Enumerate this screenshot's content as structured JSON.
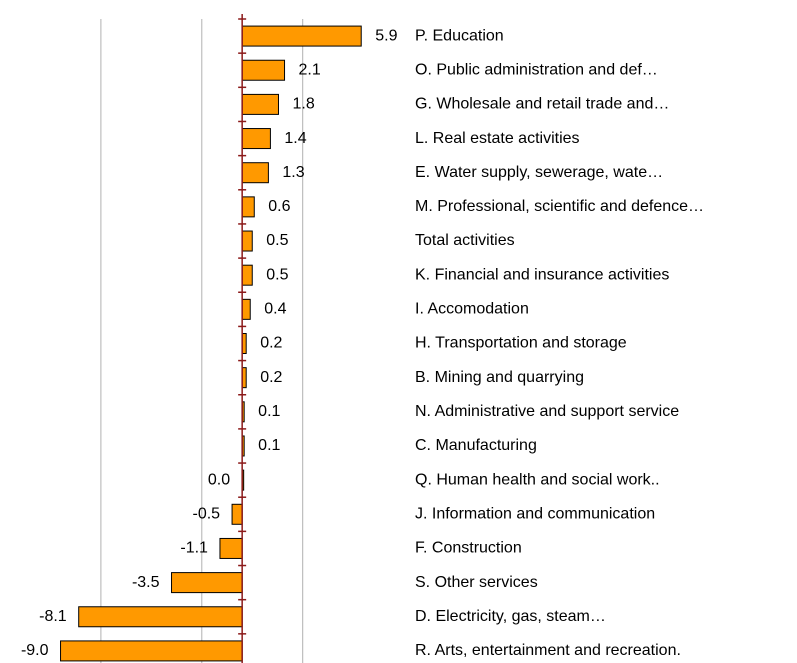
{
  "chart_data": {
    "type": "bar",
    "orientation": "horizontal",
    "categories": [
      "P. Education",
      "O. Public administration and def…",
      "G. Wholesale and retail trade and…",
      "L. Real estate activities",
      "E. Water supply, sewerage, wate…",
      "M. Professional, scientific and defence…",
      "Total activities",
      "K. Financial and insurance activities",
      "I. Accomodation",
      "H. Transportation and storage",
      "B. Mining and quarrying",
      "N. Administrative and support service",
      "C. Manufacturing",
      "Q. Human health and social work..",
      "J. Information and communication",
      "F. Construction",
      "S. Other services",
      "D. Electricity, gas, steam…",
      "R. Arts, entertainment and recreation."
    ],
    "values": [
      5.9,
      2.1,
      1.8,
      1.4,
      1.3,
      0.6,
      0.5,
      0.5,
      0.4,
      0.2,
      0.2,
      0.1,
      0.1,
      0.0,
      -0.5,
      -1.1,
      -3.5,
      -8.1,
      -9.0
    ],
    "value_labels": [
      "5.9",
      "2.1",
      "1.8",
      "1.4",
      "1.3",
      "0.6",
      "0.5",
      "0.5",
      "0.4",
      "0.2",
      "0.2",
      "0.1",
      "0.1",
      "0.0",
      "-0.5",
      "-1.1",
      "-3.5",
      "-8.1",
      "-9.0"
    ],
    "color": "#ff9900",
    "xlim": [
      -12,
      8
    ],
    "xticks": [
      -7,
      -2,
      3
    ],
    "grid": true
  }
}
